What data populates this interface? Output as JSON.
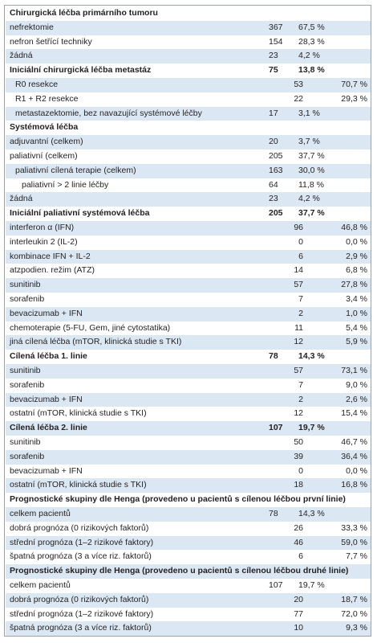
{
  "table": {
    "rows": [
      {
        "label": "Chirurgická léčba primárního tumoru"
      },
      {
        "label": "nefrektomie",
        "n": 367,
        "pct": "67,5 %"
      },
      {
        "label": "nefron šetřící techniky",
        "n": 154,
        "pct": "28,3 %"
      },
      {
        "label": "žádná",
        "n": 23,
        "pct": "4,2 %"
      },
      {
        "label": "Iniciální chirurgická léčba metastáz",
        "n": 75,
        "pct": "13,8 %"
      },
      {
        "label": "R0 resekce",
        "n": 53,
        "pct": "70,7 %"
      },
      {
        "label": "R1 + R2 resekce",
        "n": 22,
        "pct": "29,3 %"
      },
      {
        "label": "metastazektomie, bez navazující systémové léčby",
        "n": 17,
        "pct": "3,1 %"
      },
      {
        "label": "Systémová léčba"
      },
      {
        "label": "adjuvantní (celkem)",
        "n": 20,
        "pct": "3,7 %"
      },
      {
        "label": "paliativní (celkem)",
        "n": 205,
        "pct": "37,7 %"
      },
      {
        "label": "paliativní cílená terapie (celkem)",
        "n": 163,
        "pct": "30,0 %"
      },
      {
        "label": "paliativní > 2 linie léčby",
        "n": 64,
        "pct": "11,8 %"
      },
      {
        "label": "žádná",
        "n": 23,
        "pct": "4,2 %"
      },
      {
        "label": "Iniciální paliativní systémová léčba",
        "n": 205,
        "pct": "37,7 %"
      },
      {
        "label": "interferon α (IFN)",
        "n": 96,
        "pct": "46,8 %"
      },
      {
        "label": "interleukin 2 (IL-2)",
        "n": 0,
        "pct": "0,0 %"
      },
      {
        "label": "kombinace IFN + IL-2",
        "n": 6,
        "pct": "2,9 %"
      },
      {
        "label": "atzpodien. režim (ATZ)",
        "n": 14,
        "pct": "6,8 %"
      },
      {
        "label": "sunitinib",
        "n": 57,
        "pct": "27,8 %"
      },
      {
        "label": "sorafenib",
        "n": 7,
        "pct": "3,4 %"
      },
      {
        "label": "bevacizumab + IFN",
        "n": 2,
        "pct": "1,0 %"
      },
      {
        "label": "chemoterapie (5-FU, Gem, jiné cytostatika)",
        "n": 11,
        "pct": "5,4 %"
      },
      {
        "label": "jiná cílená léčba (mTOR, klinická studie s TKI)",
        "n": 12,
        "pct": "5,9 %"
      },
      {
        "label": "Cílená léčba 1. linie",
        "n": 78,
        "pct": "14,3 %"
      },
      {
        "label": "sunitinib",
        "n": 57,
        "pct": "73,1 %"
      },
      {
        "label": "sorafenib",
        "n": 7,
        "pct": "9,0 %"
      },
      {
        "label": "bevacizumab + IFN",
        "n": 2,
        "pct": "2,6 %"
      },
      {
        "label": "ostatní (mTOR, klinická studie s TKI)",
        "n": 12,
        "pct": "15,4 %"
      },
      {
        "label": "Cílená léčba 2. linie",
        "n": 107,
        "pct": "19,7 %"
      },
      {
        "label": "sunitinib",
        "n": 50,
        "pct": "46,7 %"
      },
      {
        "label": "sorafenib",
        "n": 39,
        "pct": "36,4 %"
      },
      {
        "label": "bevacizumab + IFN",
        "n": 0,
        "pct": "0,0 %"
      },
      {
        "label": "ostatní (mTOR, klinická studie s TKI)",
        "n": 18,
        "pct": "16,8 %"
      },
      {
        "label": "Prognostické skupiny dle Henga (provedeno u pacientů s cílenou léčbou první linie)"
      },
      {
        "label": "celkem pacientů",
        "n": 78,
        "pct": "14,3 %"
      },
      {
        "label": "dobrá prognóza (0 rizikových faktorů)",
        "n": 26,
        "pct": "33,3 %"
      },
      {
        "label": "střední prognóza (1–2 rizikové faktory)",
        "n": 46,
        "pct": "59,0 %"
      },
      {
        "label": "špatná prognóza (3 a více riz. faktorů)",
        "n": 6,
        "pct": "7,7 %"
      },
      {
        "label": "Prognostické skupiny dle Henga (provedeno u pacientů s cílenou léčbou druhé linie)"
      },
      {
        "label": "celkem pacientů",
        "n": 107,
        "pct": "19,7 %"
      },
      {
        "label": "dobrá prognóza (0 rizikových faktorů)",
        "n": 20,
        "pct": "18,7 %"
      },
      {
        "label": "střední prognóza (1–2 rizikové faktory)",
        "n": 77,
        "pct": "72,0 %"
      },
      {
        "label": "špatná prognóza (3 a více riz. faktorů)",
        "n": 10,
        "pct": "9,3 %"
      }
    ]
  }
}
